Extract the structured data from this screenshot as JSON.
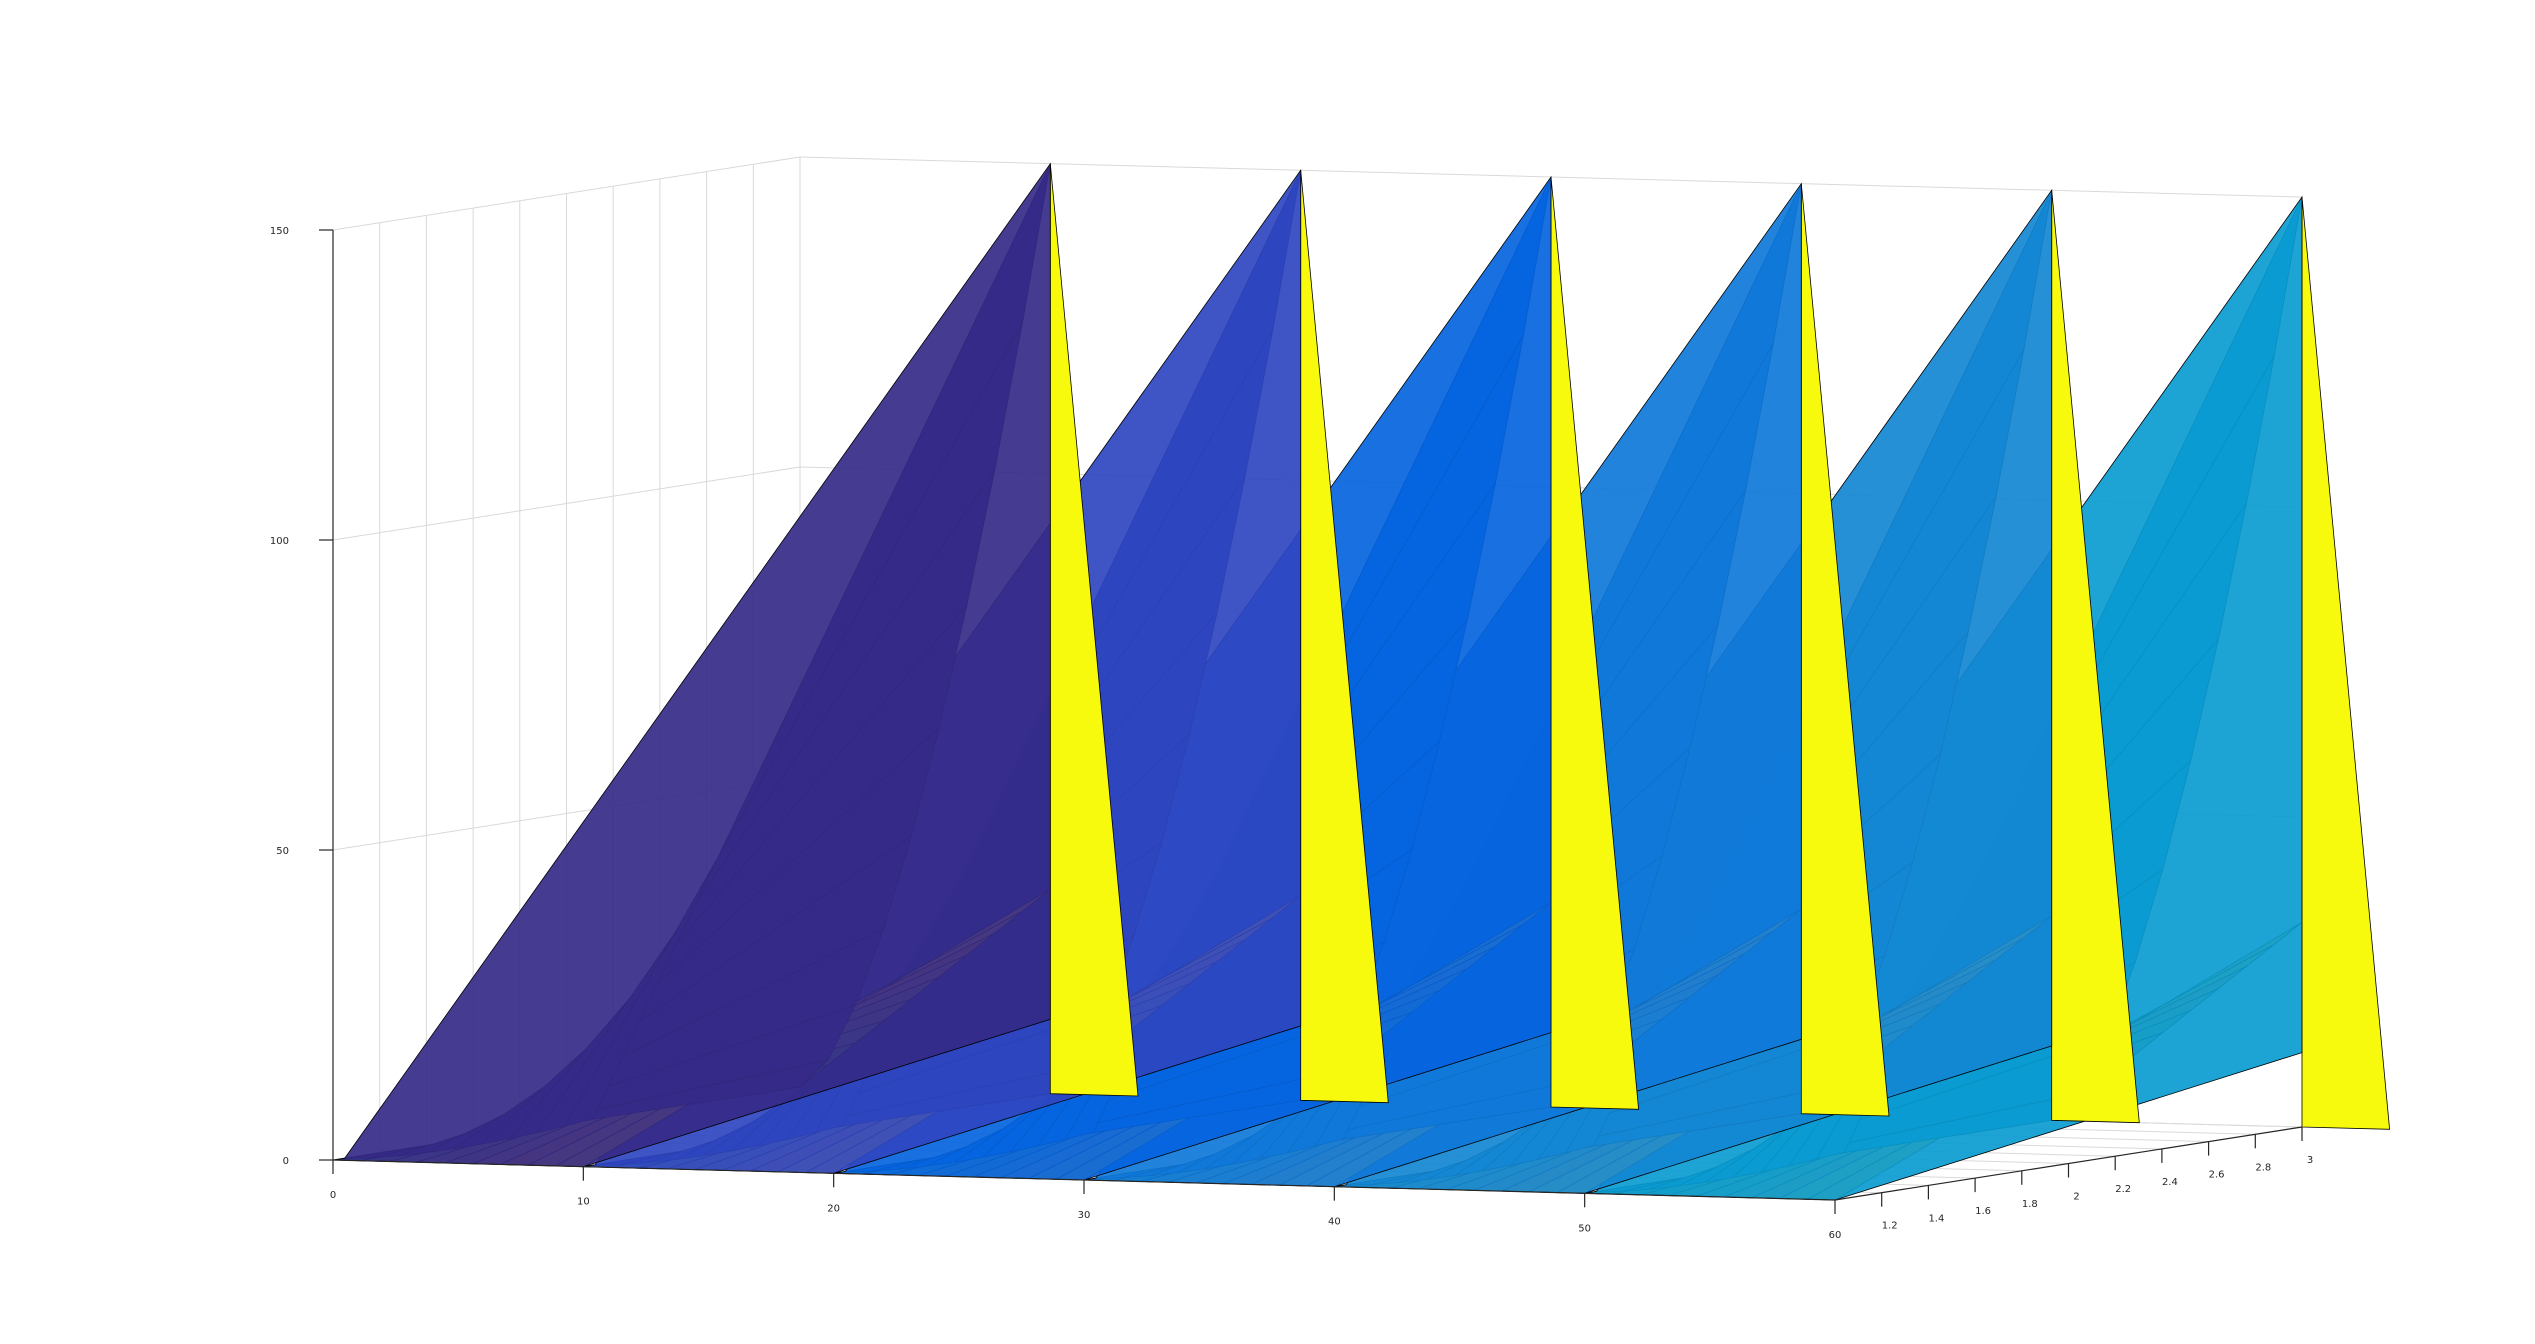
{
  "chart_data": {
    "type": "surface3d",
    "title": "",
    "xlabel": "",
    "ylabel": "",
    "zlabel": "",
    "xlim": [
      0,
      60
    ],
    "ylim": [
      1,
      3
    ],
    "zlim": [
      0,
      150
    ],
    "x_ticks": [
      "0",
      "10",
      "20",
      "30",
      "40",
      "50",
      "60"
    ],
    "y_ticks": [
      "1.2",
      "1.4",
      "1.6",
      "1.8",
      "2",
      "2.2",
      "2.4",
      "2.6",
      "2.8",
      "3"
    ],
    "z_ticks": [
      "0",
      "50",
      "100",
      "150"
    ],
    "grid": true,
    "edge_color": "#000000",
    "colormap": "parula",
    "peaks": [
      {
        "x_start": 0,
        "x_peak": 10,
        "x_end": 10,
        "y_start": 1,
        "y_end": 3,
        "z_max": 150
      },
      {
        "x_start": 10,
        "x_peak": 20,
        "x_end": 20,
        "y_start": 1,
        "y_end": 3,
        "z_max": 150
      },
      {
        "x_start": 20,
        "x_peak": 30,
        "x_end": 30,
        "y_start": 1,
        "y_end": 3,
        "z_max": 150
      },
      {
        "x_start": 30,
        "x_peak": 40,
        "x_end": 40,
        "y_start": 1,
        "y_end": 3,
        "z_max": 150
      },
      {
        "x_start": 40,
        "x_peak": 50,
        "x_end": 50,
        "y_start": 1,
        "y_end": 3,
        "z_max": 150
      },
      {
        "x_start": 50,
        "x_peak": 60,
        "x_end": 60,
        "y_start": 1,
        "y_end": 3,
        "z_max": 150
      }
    ],
    "front_colors": [
      "#352a87",
      "#2f45c0",
      "#0564de",
      "#0f78d9",
      "#1387d3",
      "#0a9bd0"
    ],
    "ramp_colors": [
      "#2ca39d",
      "#4bbb90",
      "#7fc37a",
      "#a7bd67",
      "#d0b657",
      "#f4b540",
      "#f9d93a"
    ],
    "back_color": "#f8fa0d"
  }
}
